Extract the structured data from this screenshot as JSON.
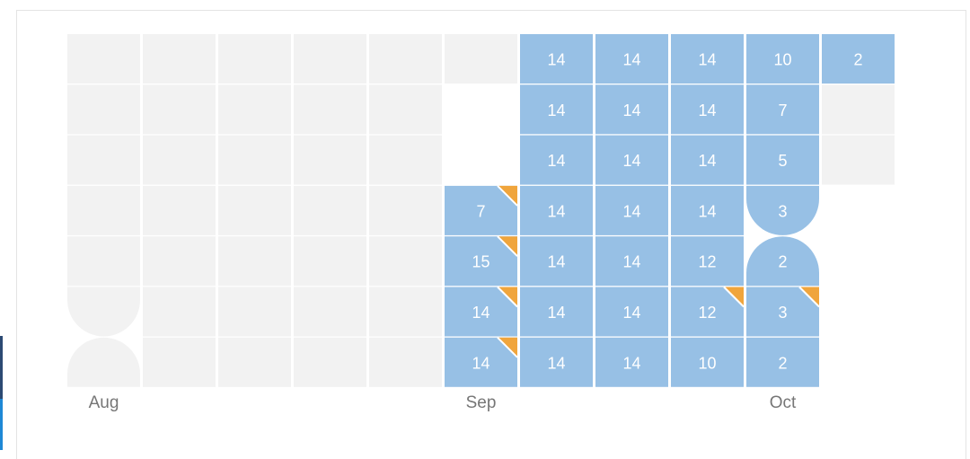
{
  "chart_data": {
    "type": "heatmap",
    "colors": {
      "empty": "#f2f2f2",
      "filled": "#97c0e5",
      "marker": "#f0a53c",
      "label": "#ffffff",
      "month_label": "#767676"
    },
    "months": [
      {
        "label": "Aug",
        "week": 0
      },
      {
        "label": "Sep",
        "week": 5
      },
      {
        "label": "Oct",
        "week": 9
      }
    ],
    "weeks": [
      [
        null,
        null,
        null,
        null,
        null,
        null,
        null
      ],
      [
        null,
        null,
        null,
        null,
        null,
        null,
        null
      ],
      [
        null,
        null,
        null,
        null,
        null,
        null,
        null
      ],
      [
        null,
        null,
        null,
        null,
        null,
        null,
        null
      ],
      [
        null,
        null,
        null,
        null,
        null,
        null,
        null
      ],
      [
        null,
        null,
        null,
        7,
        15,
        14,
        14
      ],
      [
        14,
        14,
        14,
        14,
        14,
        14,
        14
      ],
      [
        14,
        14,
        14,
        14,
        14,
        14,
        14
      ],
      [
        14,
        14,
        14,
        14,
        12,
        12,
        10
      ],
      [
        10,
        7,
        5,
        3,
        2,
        3,
        2
      ],
      [
        2,
        null,
        null,
        null,
        null,
        null,
        null
      ]
    ],
    "markers": [
      [
        5,
        3
      ],
      [
        5,
        4
      ],
      [
        5,
        5
      ],
      [
        5,
        6
      ],
      [
        8,
        5
      ],
      [
        9,
        5
      ]
    ],
    "absent": [
      [
        5,
        1
      ],
      [
        5,
        2
      ],
      [
        10,
        3
      ],
      [
        10,
        4
      ],
      [
        10,
        5
      ],
      [
        10,
        6
      ]
    ],
    "month_boundary_caps": [
      {
        "week": 0,
        "day": 5,
        "side": "bottom"
      },
      {
        "week": 0,
        "day": 6,
        "side": "top"
      },
      {
        "week": 5,
        "day": 1,
        "side": "bottom"
      },
      {
        "week": 5,
        "day": 2,
        "side": "top"
      },
      {
        "week": 9,
        "day": 3,
        "side": "bottom"
      },
      {
        "week": 9,
        "day": 4,
        "side": "top"
      }
    ]
  }
}
